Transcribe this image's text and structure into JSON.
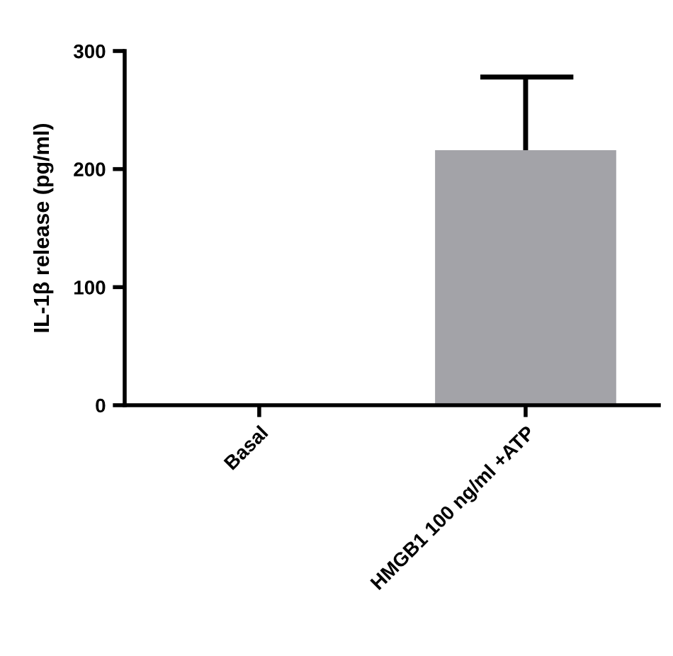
{
  "chart_data": {
    "type": "bar",
    "ylabel": "IL-1β release (pg/ml)",
    "categories": [
      "Basal",
      "HMGB1 100 ng/ml +ATP"
    ],
    "values": [
      0,
      216
    ],
    "errors": [
      null,
      [
        216,
        278
      ]
    ],
    "color": "#a3a3a8",
    "ylim": [
      0,
      300
    ],
    "yticks": [
      0,
      100,
      200,
      300
    ],
    "grid": false,
    "legend": false
  }
}
